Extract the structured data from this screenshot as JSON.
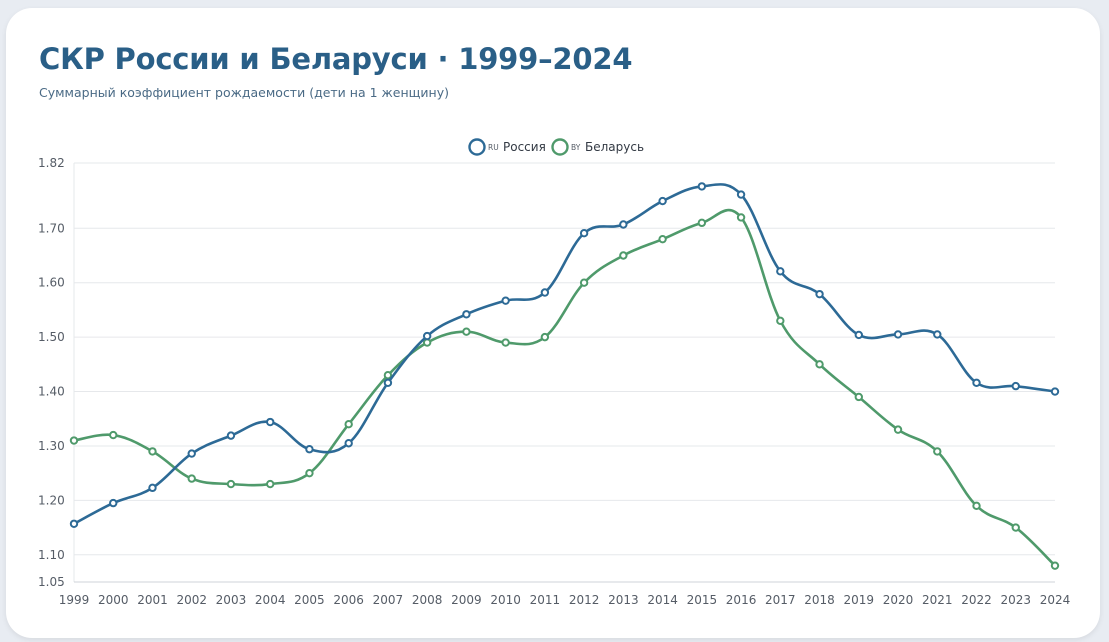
{
  "header": {
    "title": "СКР России и Беларуси · 1999–2024",
    "subtitle": "Суммарный коэффициент рождаемости (дети на 1 женщину)"
  },
  "chart_data": {
    "type": "line",
    "title": "СКР России и Беларуси · 1999–2024",
    "subtitle": "Суммарный коэффициент рождаемости (дети на 1 женщину)",
    "xlabel": "",
    "ylabel": "",
    "x": [
      "1999",
      "2000",
      "2001",
      "2002",
      "2003",
      "2004",
      "2005",
      "2006",
      "2007",
      "2008",
      "2009",
      "2010",
      "2011",
      "2012",
      "2013",
      "2014",
      "2015",
      "2016",
      "2017",
      "2018",
      "2019",
      "2020",
      "2021",
      "2022",
      "2023",
      "2024"
    ],
    "ylim": [
      1.05,
      1.82
    ],
    "yticks": [
      "1.05",
      "1.10",
      "1.20",
      "1.30",
      "1.40",
      "1.50",
      "1.60",
      "1.70",
      "1.82"
    ],
    "grid": true,
    "legend_position": "top-center",
    "series": [
      {
        "name": "Россия",
        "code": "RU",
        "color": "#2d6a96",
        "values": [
          1.157,
          1.195,
          1.223,
          1.286,
          1.319,
          1.344,
          1.294,
          1.305,
          1.416,
          1.502,
          1.542,
          1.567,
          1.582,
          1.691,
          1.707,
          1.75,
          1.777,
          1.762,
          1.621,
          1.579,
          1.504,
          1.505,
          1.505,
          1.416,
          1.41,
          1.4
        ]
      },
      {
        "name": "Беларусь",
        "code": "BY",
        "color": "#4f9a6b",
        "values": [
          1.31,
          1.32,
          1.29,
          1.24,
          1.23,
          1.23,
          1.25,
          1.34,
          1.43,
          1.49,
          1.51,
          1.49,
          1.5,
          1.6,
          1.65,
          1.68,
          1.71,
          1.72,
          1.53,
          1.45,
          1.39,
          1.33,
          1.29,
          1.19,
          1.15,
          1.08
        ]
      }
    ]
  }
}
